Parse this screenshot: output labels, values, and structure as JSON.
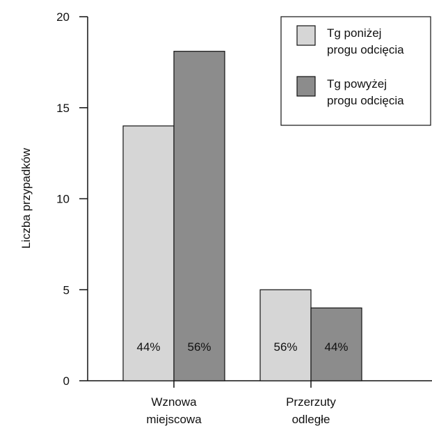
{
  "chart_data": {
    "type": "bar",
    "ylabel": "Liczba przypadków",
    "ylim": [
      0,
      20
    ],
    "yticks": [
      0,
      5,
      10,
      15,
      20
    ],
    "categories": [
      [
        "Wznowa",
        "miejscowa"
      ],
      [
        "Przerzuty",
        "odległe"
      ]
    ],
    "series": [
      {
        "name": [
          "Tg poniżej",
          "progu odcięcia"
        ],
        "color": "#d6d6d6",
        "values": [
          14,
          5
        ],
        "labels": [
          "44%",
          "56%"
        ]
      },
      {
        "name": [
          "Tg powyżej",
          "progu odcięcia"
        ],
        "color": "#8c8c8c",
        "values": [
          18.1,
          4
        ],
        "labels": [
          "56%",
          "44%"
        ]
      }
    ],
    "legend": "top-right",
    "grid": false
  }
}
